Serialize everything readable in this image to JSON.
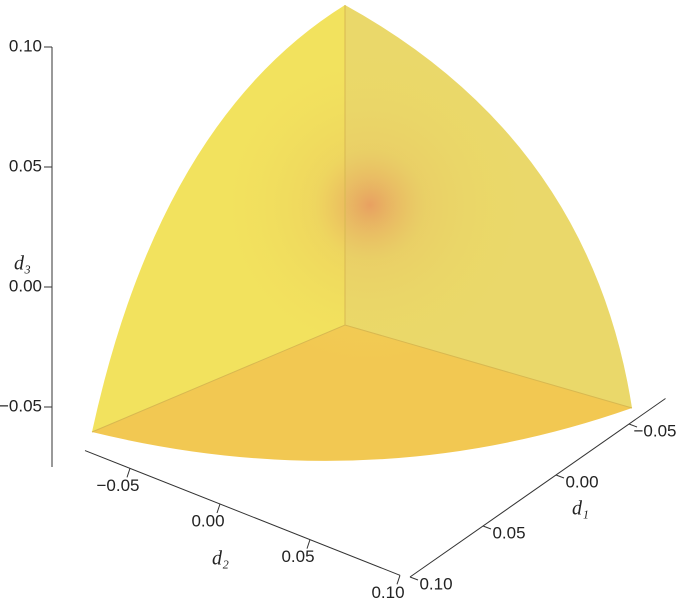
{
  "chart_data": {
    "type": "surface3d",
    "x_label": "d₁",
    "y_label": "d₂",
    "z_label": "d₃",
    "xlim": [
      -0.075,
      0.1
    ],
    "ylim": [
      -0.075,
      0.1
    ],
    "zlim": [
      -0.075,
      0.1
    ],
    "xticks": [
      {
        "value": -0.05,
        "label": "−0.05"
      },
      {
        "value": 0,
        "label": "0.00"
      },
      {
        "value": 0.05,
        "label": "0.05"
      },
      {
        "value": 0.1,
        "label": "0.10"
      }
    ],
    "yticks": [
      {
        "value": -0.05,
        "label": "−0.05"
      },
      {
        "value": 0,
        "label": "0.00"
      },
      {
        "value": 0.05,
        "label": "0.05"
      },
      {
        "value": 0.1,
        "label": "0.10"
      }
    ],
    "zticks": [
      {
        "value": -0.05,
        "label": "−0.05"
      },
      {
        "value": 0,
        "label": "0.00"
      },
      {
        "value": 0.05,
        "label": "0.05"
      },
      {
        "value": 0.1,
        "label": "0.10"
      }
    ],
    "color": "#f2e25e"
  }
}
